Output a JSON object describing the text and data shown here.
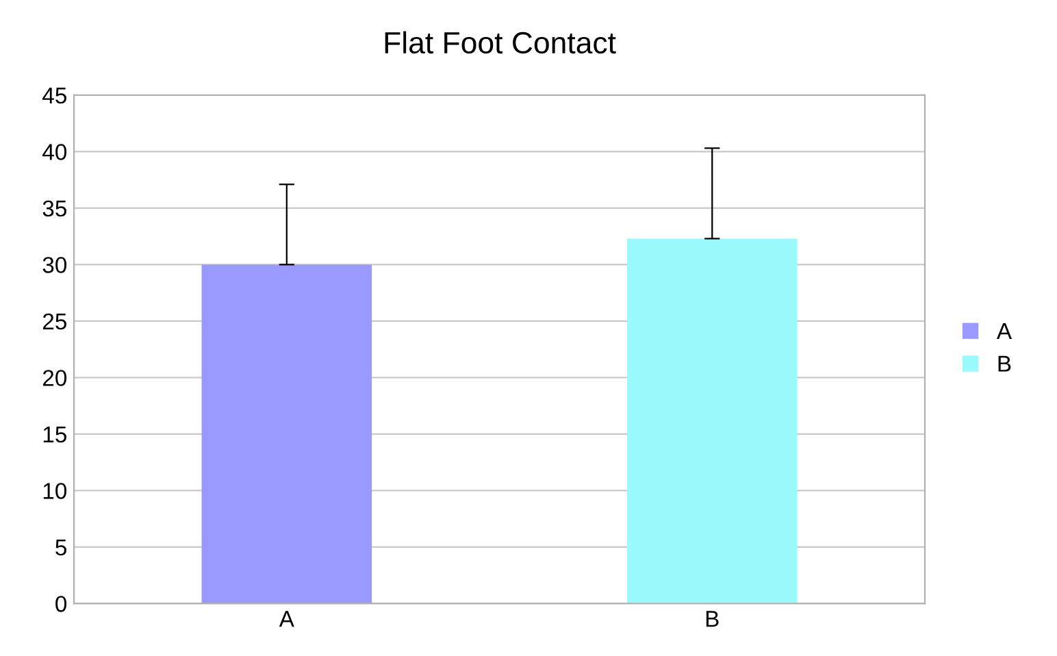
{
  "chart_data": {
    "type": "bar",
    "title": "Flat Foot Contact",
    "categories": [
      "A",
      "B"
    ],
    "series": [
      {
        "name": "A",
        "color": "#9999ff",
        "values": [
          30,
          null
        ],
        "errors": [
          [
            30,
            37.1
          ],
          null
        ]
      },
      {
        "name": "B",
        "color": "#99f9fb",
        "values": [
          null,
          32.3
        ],
        "errors": [
          null,
          [
            32.3,
            40.3
          ]
        ]
      }
    ],
    "ylim": [
      0,
      45
    ],
    "yticks": [
      0,
      5,
      10,
      15,
      20,
      25,
      30,
      35,
      40,
      45
    ],
    "grid": "y",
    "legend": "right"
  }
}
